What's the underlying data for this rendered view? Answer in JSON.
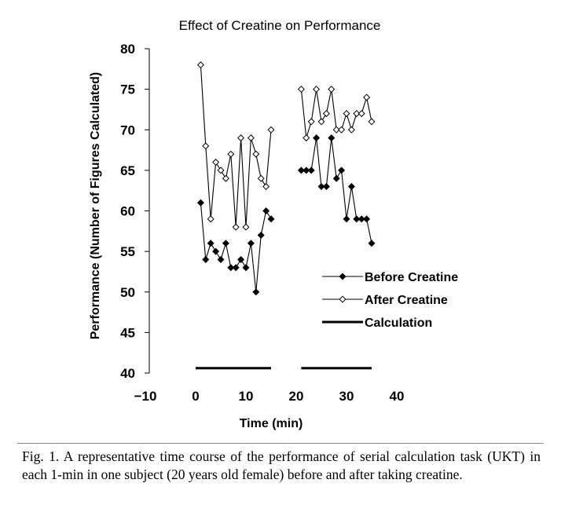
{
  "caption": "Fig. 1. A representative time course of the performance of serial calculation task (UKT) in each 1-min in one subject (20 years old female) before and after taking creatine.",
  "chart_data": {
    "type": "line",
    "title": "Effect of Creatine on Performance",
    "xlabel": "Time (min)",
    "ylabel": "Performance (Number of Figures Calculated)",
    "xlim": [
      -10,
      40
    ],
    "ylim": [
      40,
      80
    ],
    "xticks": [
      -10,
      0,
      10,
      20,
      30,
      40
    ],
    "yticks": [
      40,
      45,
      50,
      55,
      60,
      65,
      70,
      75,
      80
    ],
    "xtick_labels": [
      "−10",
      "0",
      "10",
      "20",
      "30",
      "40"
    ],
    "ytick_labels": [
      "40",
      "45",
      "50",
      "55",
      "60",
      "65",
      "70",
      "75",
      "80"
    ],
    "grid": false,
    "legend_position": "center-right",
    "series": [
      {
        "name": "Before Creatine",
        "marker": "filled-diamond",
        "segments": [
          {
            "x": [
              1,
              2,
              3,
              4,
              5,
              6,
              7,
              8,
              9,
              10,
              11,
              12,
              13,
              14,
              15
            ],
            "y": [
              61,
              54,
              56,
              55,
              54,
              56,
              53,
              53,
              54,
              53,
              56,
              50,
              57,
              60,
              59
            ]
          },
          {
            "x": [
              21,
              22,
              23,
              24,
              25,
              26,
              27,
              28,
              29,
              30,
              31,
              32,
              33,
              34,
              35
            ],
            "y": [
              65,
              65,
              65,
              69,
              63,
              63,
              69,
              64,
              65,
              59,
              63,
              59,
              59,
              59,
              56
            ]
          }
        ]
      },
      {
        "name": "After Creatine",
        "marker": "open-diamond",
        "segments": [
          {
            "x": [
              1,
              2,
              3,
              4,
              5,
              6,
              7,
              8,
              9,
              10,
              11,
              12,
              13,
              14,
              15
            ],
            "y": [
              78,
              68,
              59,
              66,
              65,
              64,
              67,
              58,
              69,
              58,
              69,
              67,
              64,
              63,
              70
            ]
          },
          {
            "x": [
              21,
              22,
              23,
              24,
              25,
              26,
              27,
              28,
              29,
              30,
              31,
              32,
              33,
              34,
              35
            ],
            "y": [
              75,
              69,
              71,
              75,
              71,
              72,
              75,
              70,
              70,
              72,
              70,
              72,
              72,
              74,
              71
            ]
          }
        ]
      },
      {
        "name": "Calculation",
        "marker": "none",
        "stroke_width": "thick",
        "segments": [
          {
            "x": [
              0,
              15
            ],
            "y": [
              40.6,
              40.6
            ]
          },
          {
            "x": [
              21,
              35
            ],
            "y": [
              40.6,
              40.6
            ]
          }
        ]
      }
    ]
  }
}
